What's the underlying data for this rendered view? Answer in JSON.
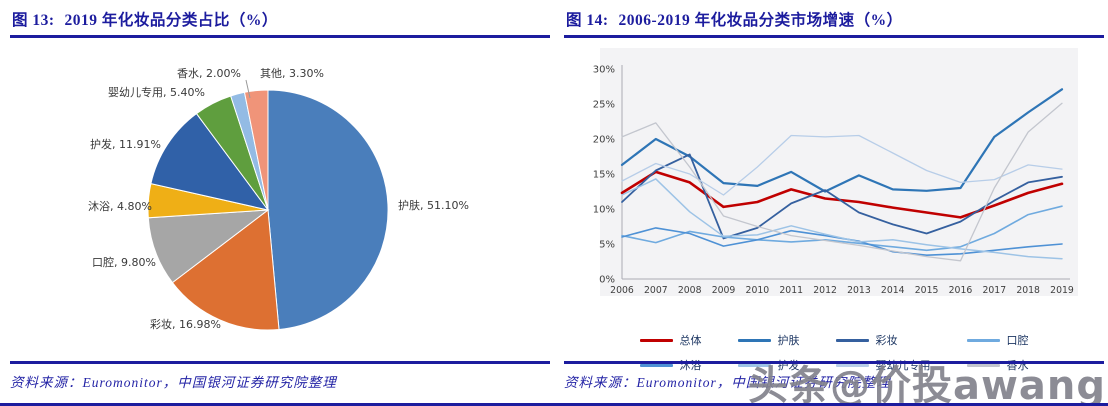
{
  "left": {
    "fig_label": "图 13:",
    "title": "2019 年化妆品分类占比（%）",
    "source": "资料来源：Euromonitor，中国银河证券研究院整理"
  },
  "right": {
    "fig_label": "图 14:",
    "title": "2006-2019 年化妆品分类市场增速（%）",
    "source": "资料来源：Euromonitor，中国银河证券研究院整理"
  },
  "watermark": "头条@价投awang",
  "colors": {
    "accent": "#1c1c9e",
    "axis": "#ababb3",
    "plot_bg": "#f3f3f5"
  },
  "chart_data": [
    {
      "type": "pie",
      "title": "2019 年化妆品分类占比（%）",
      "unit": "%",
      "slices": [
        {
          "label": "护肤",
          "value": 51.1,
          "text": "护肤, 51.10%",
          "color": "#4a7ebb"
        },
        {
          "label": "彩妆",
          "value": 16.98,
          "text": "彩妆, 16.98%",
          "color": "#dd7032"
        },
        {
          "label": "口腔",
          "value": 9.8,
          "text": "口腔, 9.80%",
          "color": "#a6a6a6"
        },
        {
          "label": "沐浴",
          "value": 4.8,
          "text": "沐浴, 4.80%",
          "color": "#efaf16"
        },
        {
          "label": "护发",
          "value": 11.91,
          "text": "护发, 11.91%",
          "color": "#3061a8"
        },
        {
          "label": "婴幼儿专用",
          "value": 5.4,
          "text": "婴幼儿专用, 5.40%",
          "color": "#5f9e3e"
        },
        {
          "label": "香水",
          "value": 2.0,
          "text": "香水, 2.00%",
          "color": "#93bbe4"
        },
        {
          "label": "其他",
          "value": 3.3,
          "text": "其他, 3.30%",
          "color": "#f09479"
        }
      ]
    },
    {
      "type": "line",
      "title": "2006-2019 年化妆品分类市场增速（%）",
      "unit": "%",
      "x": [
        2006,
        2007,
        2008,
        2009,
        2010,
        2011,
        2012,
        2013,
        2014,
        2015,
        2016,
        2017,
        2018,
        2019
      ],
      "ylim": [
        0,
        30
      ],
      "yticks": [
        "0%",
        "5%",
        "10%",
        "15%",
        "20%",
        "25%",
        "30%"
      ],
      "grid": false,
      "legend_position": "bottom",
      "series": [
        {
          "name": "总体",
          "color": "#c00000",
          "width": 2.6,
          "values": [
            12.3,
            15.3,
            13.8,
            10.3,
            11.0,
            12.8,
            11.5,
            11.0,
            10.2,
            9.5,
            8.8,
            10.5,
            12.3,
            13.6
          ]
        },
        {
          "name": "护肤",
          "color": "#2e75b6",
          "width": 2.2,
          "values": [
            16.3,
            20.0,
            17.5,
            13.7,
            13.3,
            15.3,
            12.5,
            14.8,
            12.8,
            12.6,
            13.0,
            20.3,
            23.8,
            27.1
          ]
        },
        {
          "name": "彩妆",
          "color": "#35609f",
          "width": 1.8,
          "values": [
            11.0,
            15.5,
            17.8,
            5.8,
            7.3,
            10.8,
            12.7,
            9.5,
            7.8,
            6.5,
            8.2,
            11.2,
            13.8,
            14.6
          ]
        },
        {
          "name": "口腔",
          "color": "#6faadf",
          "width": 1.6,
          "values": [
            6.2,
            5.2,
            6.8,
            6.0,
            5.6,
            5.3,
            5.6,
            5.1,
            4.6,
            4.1,
            4.6,
            6.5,
            9.2,
            10.4
          ]
        },
        {
          "name": "沐浴",
          "color": "#4e91d5",
          "width": 1.6,
          "values": [
            6.0,
            7.3,
            6.5,
            4.7,
            5.6,
            6.9,
            6.2,
            5.4,
            3.9,
            3.4,
            3.6,
            4.1,
            4.6,
            5.0
          ]
        },
        {
          "name": "护发",
          "color": "#9dc3e6",
          "width": 1.5,
          "values": [
            12.0,
            14.3,
            9.6,
            6.1,
            6.3,
            7.6,
            6.4,
            5.3,
            5.6,
            4.9,
            4.3,
            3.8,
            3.2,
            2.9
          ]
        },
        {
          "name": "婴幼儿专用",
          "color": "#b7cde8",
          "width": 1.3,
          "values": [
            14.0,
            16.5,
            15.0,
            12.0,
            16.0,
            20.5,
            20.3,
            20.5,
            18.0,
            15.5,
            13.8,
            14.2,
            16.3,
            15.7
          ]
        },
        {
          "name": "香水",
          "color": "#c3c6ce",
          "width": 1.3,
          "values": [
            20.3,
            22.3,
            16.0,
            9.0,
            7.5,
            6.2,
            5.5,
            4.8,
            4.0,
            3.2,
            2.6,
            13.0,
            21.0,
            25.1
          ]
        }
      ],
      "legend_rows": [
        [
          "总体",
          "护肤",
          "彩妆",
          "口腔"
        ],
        [
          "沐浴",
          "护发",
          "婴幼儿专用",
          "香水"
        ]
      ]
    }
  ]
}
